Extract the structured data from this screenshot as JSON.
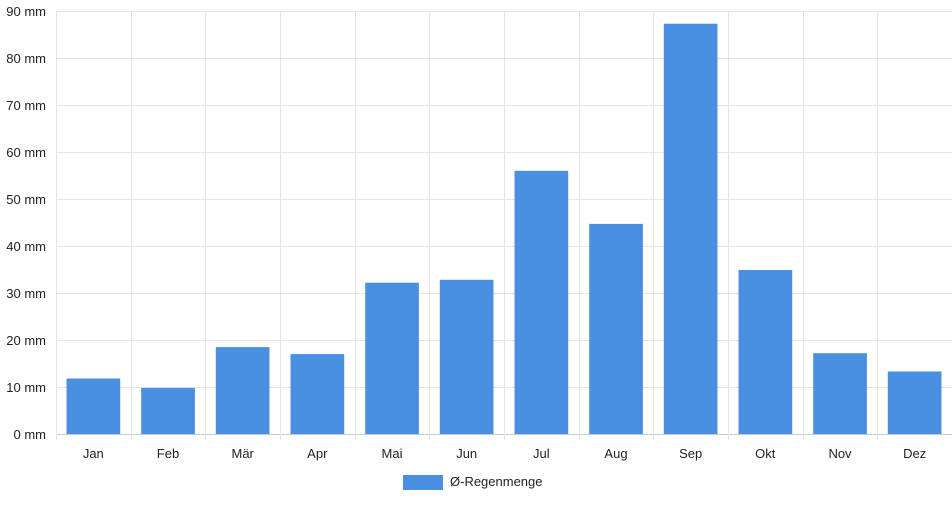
{
  "chart_data": {
    "type": "bar",
    "title": "",
    "xlabel": "",
    "ylabel": "",
    "categories": [
      "Jan",
      "Feb",
      "Mär",
      "Apr",
      "Mai",
      "Jun",
      "Jul",
      "Aug",
      "Sep",
      "Okt",
      "Nov",
      "Dez"
    ],
    "series": [
      {
        "name": "Ø-Regenmenge",
        "values": [
          11.8,
          9.8,
          18.5,
          17.0,
          32.2,
          32.8,
          56.0,
          44.7,
          87.3,
          34.9,
          17.2,
          13.3
        ],
        "color": "#4a90e2"
      }
    ],
    "ylim": [
      0,
      90
    ],
    "yticks": [
      "0 mm",
      "10 mm",
      "20 mm",
      "30 mm",
      "40 mm",
      "50 mm",
      "60 mm",
      "70 mm",
      "80 mm",
      "90 mm"
    ],
    "grid": true,
    "legend_position": "bottom-center"
  }
}
